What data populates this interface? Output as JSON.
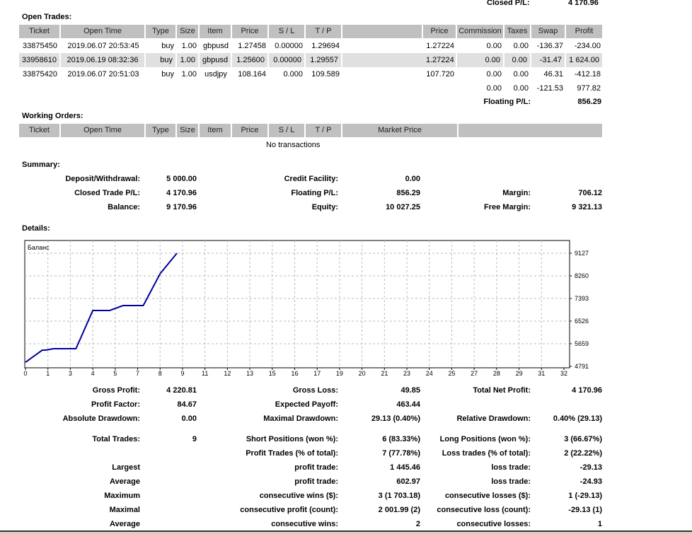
{
  "closed_pl": {
    "label": "Closed P/L:",
    "value": "4 170.96"
  },
  "open_trades": {
    "title": "Open Trades:",
    "columns": [
      "Ticket",
      "Open Time",
      "Type",
      "Size",
      "Item",
      "Price",
      "S / L",
      "T / P",
      "",
      "Price",
      "Commission",
      "Taxes",
      "Swap",
      "Profit"
    ],
    "rows": [
      [
        "33875450",
        "2019.06.07 20:53:45",
        "buy",
        "1.00",
        "gbpusd",
        "1.27458",
        "0.00000",
        "1.29694",
        "",
        "1.27224",
        "0.00",
        "0.00",
        "-136.37",
        "-234.00"
      ],
      [
        "33958610",
        "2019.06.19 08:32:36",
        "buy",
        "1.00",
        "gbpusd",
        "1.25600",
        "0.00000",
        "1.29557",
        "",
        "1.27224",
        "0.00",
        "0.00",
        "-31.47",
        "1 624.00"
      ],
      [
        "33875420",
        "2019.06.07 20:51:03",
        "buy",
        "1.00",
        "usdjpy",
        "108.164",
        "0.000",
        "109.589",
        "",
        "107.720",
        "0.00",
        "0.00",
        "46.31",
        "-412.18"
      ]
    ],
    "totals": [
      "0.00",
      "0.00",
      "-121.53",
      "977.82"
    ],
    "floating_label": "Floating P/L:",
    "floating_value": "856.29"
  },
  "working_orders": {
    "title": "Working Orders:",
    "columns": [
      "Ticket",
      "Open Time",
      "Type",
      "Size",
      "Item",
      "Price",
      "S / L",
      "T / P",
      "Market Price",
      ""
    ],
    "empty": "No transactions"
  },
  "summary": {
    "title": "Summary:",
    "rows": [
      [
        [
          "Deposit/Withdrawal:",
          "5 000.00"
        ],
        [
          "Credit Facility:",
          "0.00"
        ],
        [
          "",
          ""
        ]
      ],
      [
        [
          "Closed Trade P/L:",
          "4 170.96"
        ],
        [
          "Floating P/L:",
          "856.29"
        ],
        [
          "Margin:",
          "706.12"
        ]
      ],
      [
        [
          "Balance:",
          "9 170.96"
        ],
        [
          "Equity:",
          "10 027.25"
        ],
        [
          "Free Margin:",
          "9 321.13"
        ]
      ]
    ]
  },
  "details": {
    "title": "Details:",
    "rows": [
      [
        [
          "Gross Profit:",
          "4 220.81"
        ],
        [
          "Gross Loss:",
          "49.85"
        ],
        [
          "Total Net Profit:",
          "4 170.96"
        ]
      ],
      [
        [
          "Profit Factor:",
          "84.67"
        ],
        [
          "Expected Payoff:",
          "463.44"
        ],
        [
          "",
          ""
        ]
      ],
      [
        [
          "Absolute Drawdown:",
          "0.00"
        ],
        [
          "Maximal Drawdown:",
          "29.13 (0.40%)"
        ],
        [
          "Relative Drawdown:",
          "0.40% (29.13)"
        ]
      ],
      [
        [
          "Total Trades:",
          "9"
        ],
        [
          "Short Positions (won %):",
          "6 (83.33%)"
        ],
        [
          "Long Positions (won %):",
          "3 (66.67%)"
        ]
      ],
      [
        [
          "",
          ""
        ],
        [
          "Profit Trades (% of total):",
          "7 (77.78%)"
        ],
        [
          "Loss trades (% of total):",
          "2 (22.22%)"
        ]
      ],
      [
        [
          "Largest",
          ""
        ],
        [
          "profit trade:",
          "1 445.46"
        ],
        [
          "loss trade:",
          "-29.13"
        ]
      ],
      [
        [
          "Average",
          ""
        ],
        [
          "profit trade:",
          "602.97"
        ],
        [
          "loss trade:",
          "-24.93"
        ]
      ],
      [
        [
          "Maximum",
          ""
        ],
        [
          "consecutive wins ($):",
          "3 (1 703.18)"
        ],
        [
          "consecutive losses ($):",
          "1 (-29.13)"
        ]
      ],
      [
        [
          "Maximal",
          ""
        ],
        [
          "consecutive profit (count):",
          "2 001.99 (2)"
        ],
        [
          "consecutive loss (count):",
          "-29.13 (1)"
        ]
      ],
      [
        [
          "Average",
          ""
        ],
        [
          "consecutive wins:",
          "2"
        ],
        [
          "consecutive losses:",
          "1"
        ]
      ]
    ]
  },
  "chart_data": {
    "type": "line",
    "legend": "Баланс",
    "series": [
      {
        "name": "Баланс",
        "color": "#00009c",
        "x": [
          0,
          1,
          1.2,
          1.67,
          3,
          4,
          5,
          5.8,
          7,
          8,
          9
        ],
        "y": [
          4950,
          5414,
          5414,
          5469,
          5469,
          6932,
          6932,
          7121,
          7121,
          8341,
          9127
        ]
      }
    ],
    "x_tick_labels": [
      "0",
      "1",
      "3",
      "4",
      "5",
      "7",
      "8",
      "9",
      "11",
      "12",
      "13",
      "15",
      "16",
      "17",
      "19",
      "20",
      "21",
      "23",
      "24",
      "25",
      "27",
      "28",
      "29",
      "31",
      "32"
    ],
    "y_tick_labels": [
      "9127",
      "8260",
      "7393",
      "6526",
      "5659",
      "4791"
    ],
    "xlim": [
      0,
      32
    ],
    "ylim": [
      4791,
      9127
    ],
    "grid": true
  }
}
